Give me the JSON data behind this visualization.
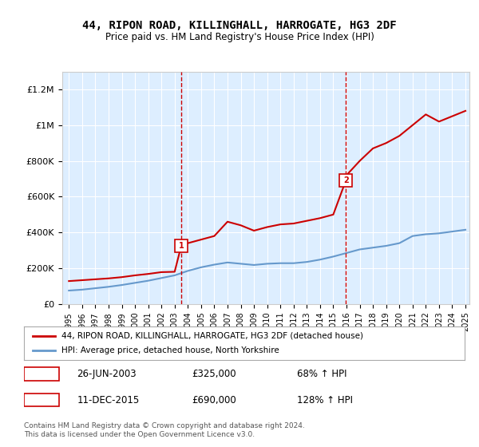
{
  "title": "44, RIPON ROAD, KILLINGHALL, HARROGATE, HG3 2DF",
  "subtitle": "Price paid vs. HM Land Registry's House Price Index (HPI)",
  "ylim": [
    0,
    1300000
  ],
  "yticks": [
    0,
    200000,
    400000,
    600000,
    800000,
    1000000,
    1200000
  ],
  "ytick_labels": [
    "£0",
    "£200K",
    "£400K",
    "£600K",
    "£800K",
    "£1M",
    "£1.2M"
  ],
  "x_start_year": 1995,
  "x_end_year": 2025,
  "legend_line1": "44, RIPON ROAD, KILLINGHALL, HARROGATE, HG3 2DF (detached house)",
  "legend_line2": "HPI: Average price, detached house, North Yorkshire",
  "sale1_label": "1",
  "sale1_date": "26-JUN-2003",
  "sale1_price": "£325,000",
  "sale1_hpi": "68% ↑ HPI",
  "sale2_label": "2",
  "sale2_date": "11-DEC-2015",
  "sale2_price": "£690,000",
  "sale2_hpi": "128% ↑ HPI",
  "footer": "Contains HM Land Registry data © Crown copyright and database right 2024.\nThis data is licensed under the Open Government Licence v3.0.",
  "line_color_red": "#cc0000",
  "line_color_blue": "#6699cc",
  "bg_color": "#ddeeff",
  "hpi_years": [
    1995,
    1996,
    1997,
    1998,
    1999,
    2000,
    2001,
    2002,
    2003,
    2004,
    2005,
    2006,
    2007,
    2008,
    2009,
    2010,
    2011,
    2012,
    2013,
    2014,
    2015,
    2016,
    2017,
    2018,
    2019,
    2020,
    2021,
    2022,
    2023,
    2024,
    2025
  ],
  "hpi_values": [
    75000,
    80000,
    88000,
    96000,
    106000,
    118000,
    130000,
    145000,
    160000,
    185000,
    205000,
    220000,
    232000,
    225000,
    218000,
    225000,
    228000,
    228000,
    235000,
    248000,
    265000,
    285000,
    305000,
    315000,
    325000,
    340000,
    380000,
    390000,
    395000,
    405000,
    415000
  ],
  "sale1_year": 2003.5,
  "sale1_value": 325000,
  "sale2_year": 2015.95,
  "sale2_value": 690000,
  "hpi_sale1_year": 2003.5,
  "hpi_sale2_year": 2015.95,
  "red_line_years": [
    1995,
    1996,
    1997,
    1998,
    1999,
    2000,
    2001,
    2002,
    2003,
    2003.5,
    2004,
    2005,
    2006,
    2007,
    2008,
    2009,
    2010,
    2011,
    2012,
    2013,
    2014,
    2015,
    2015.95,
    2016,
    2017,
    2018,
    2019,
    2020,
    2021,
    2022,
    2023,
    2024,
    2025
  ],
  "red_line_values": [
    128000,
    133000,
    138000,
    143000,
    150000,
    160000,
    168000,
    178000,
    180000,
    325000,
    340000,
    360000,
    380000,
    460000,
    440000,
    410000,
    430000,
    445000,
    450000,
    465000,
    480000,
    500000,
    690000,
    720000,
    800000,
    870000,
    900000,
    940000,
    1000000,
    1060000,
    1020000,
    1050000,
    1080000
  ]
}
